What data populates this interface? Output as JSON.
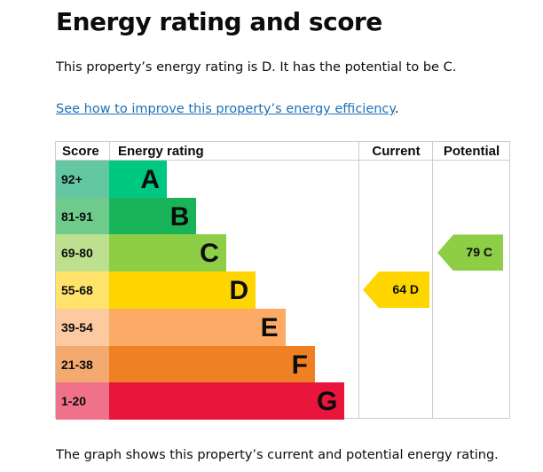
{
  "title": "Energy rating and score",
  "intro": "This property’s energy rating is D. It has the potential to be C.",
  "link": "See how to improve this property’s energy efficiency",
  "link_suffix": ".",
  "headers": {
    "score": "Score",
    "rating": "Energy rating",
    "current": "Current",
    "potential": "Potential"
  },
  "bands": [
    {
      "score": "92+",
      "letter": "A",
      "color": "#00c781",
      "tint": "#64c7a4"
    },
    {
      "score": "81-91",
      "letter": "B",
      "color": "#19b459",
      "tint": "#6fcb8c"
    },
    {
      "score": "69-80",
      "letter": "C",
      "color": "#8dce46",
      "tint": "#bde08f"
    },
    {
      "score": "55-68",
      "letter": "D",
      "color": "#ffd500",
      "tint": "#ffe36b"
    },
    {
      "score": "39-54",
      "letter": "E",
      "color": "#fcaa65",
      "tint": "#fdc9a0"
    },
    {
      "score": "21-38",
      "letter": "F",
      "color": "#ef8023",
      "tint": "#f4a96e"
    },
    {
      "score": "1-20",
      "letter": "G",
      "color": "#e9153b",
      "tint": "#f0728a"
    }
  ],
  "current": {
    "score": "64",
    "letter": "D",
    "label": "64  D",
    "color": "#ffd500"
  },
  "potential": {
    "score": "79",
    "letter": "C",
    "label": "79  C",
    "color": "#8dce46"
  },
  "footer": "The graph shows this property’s current and potential energy rating."
}
